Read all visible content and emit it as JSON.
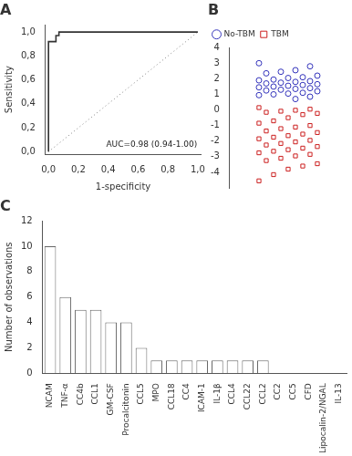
{
  "chart_data": [
    {
      "type": "line",
      "title": "A",
      "xlabel": "1-specificity",
      "ylabel": "Sensitivity",
      "series": [
        {
          "color": "#333333",
          "line_style": "solid",
          "x": [
            0.0,
            0.0,
            0.05,
            0.05,
            0.07,
            0.07,
            1.0
          ],
          "values": [
            0.0,
            0.92,
            0.92,
            0.97,
            0.97,
            1.0,
            1.0
          ]
        },
        {
          "color": "gray",
          "line_style": "dotted",
          "x": [
            0,
            1
          ],
          "values": [
            0,
            1
          ]
        }
      ],
      "xlim": [
        -0.02,
        1.02
      ],
      "ylim": [
        -0.02,
        1.06
      ],
      "xticks": [
        {
          "value": 0.0,
          "label": "0,0"
        },
        {
          "value": 0.2,
          "label": "0,2"
        },
        {
          "value": 0.4,
          "label": "0,4"
        },
        {
          "value": 0.6,
          "label": "0,6"
        },
        {
          "value": 0.8,
          "label": "0,8"
        },
        {
          "value": 1.0,
          "label": "1,0"
        }
      ],
      "yticks": [
        {
          "value": 0.0,
          "label": "0,0"
        },
        {
          "value": 0.2,
          "label": "0,2"
        },
        {
          "value": 0.4,
          "label": "0,4"
        },
        {
          "value": 0.6,
          "label": "0,6"
        },
        {
          "value": 0.8,
          "label": "0,8"
        },
        {
          "value": 1.0,
          "label": "1,0"
        }
      ],
      "annotations": [
        {
          "text": "AUC=0.98 (0.94-1.00)"
        }
      ],
      "grid": false
    },
    {
      "type": "strip",
      "title": "B",
      "series": [
        {
          "name": "No-TBM",
          "color": "#3333bb",
          "marker": "circle",
          "values": [
            3.0,
            2.8,
            2.55,
            2.45,
            2.35,
            2.2,
            2.1,
            2.05,
            1.95,
            1.9,
            1.85,
            1.8,
            1.75,
            1.7,
            1.65,
            1.6,
            1.55,
            1.5,
            1.45,
            1.4,
            1.35,
            1.3,
            1.25,
            1.2,
            1.1,
            1.05,
            1.0,
            0.95,
            0.85,
            0.7
          ]
        },
        {
          "name": "TBM",
          "color": "#cc2020",
          "marker": "square",
          "values": [
            0.15,
            0.05,
            -0.02,
            -0.08,
            -0.15,
            -0.22,
            -0.3,
            -0.5,
            -0.7,
            -0.85,
            -1.0,
            -1.1,
            -1.2,
            -1.35,
            -1.45,
            -1.55,
            -1.65,
            -1.75,
            -1.85,
            -1.95,
            -2.05,
            -2.15,
            -2.25,
            -2.35,
            -2.45,
            -2.55,
            -2.65,
            -2.75,
            -2.85,
            -2.95,
            -3.1,
            -3.25,
            -3.45,
            -3.6,
            -3.8,
            -4.15,
            -4.55
          ]
        }
      ],
      "ylim": [
        -5,
        4
      ],
      "yticks": [
        -4,
        -3,
        -2,
        -1,
        0,
        1,
        2,
        3,
        4
      ],
      "legend": "upper left",
      "grid": false,
      "tick_labels": "y"
    },
    {
      "type": "bar",
      "title": "C",
      "ylabel": "Number of observations",
      "categories": [
        "NCAM",
        "TNF-α",
        "CC4b",
        "CCL1",
        "GM-CSF",
        "Procalcitonin",
        "CCL5",
        "MPO",
        "CCL18",
        "CC4",
        "ICAM-1",
        "IL-1β",
        "CCL4",
        "CCL22",
        "CCL2",
        "CC2",
        "CC5",
        "CFD",
        "Lipocalin-2/NGAL",
        "IL-13"
      ],
      "values": [
        10,
        6,
        5,
        5,
        4,
        4,
        2,
        1,
        1,
        1,
        1,
        1,
        1,
        1,
        1,
        0,
        0,
        0,
        0,
        0
      ],
      "color": "#ffffff",
      "ylim": [
        0,
        12
      ],
      "yticks": [
        0,
        2,
        4,
        6,
        8,
        10,
        12
      ],
      "grid": false
    }
  ]
}
